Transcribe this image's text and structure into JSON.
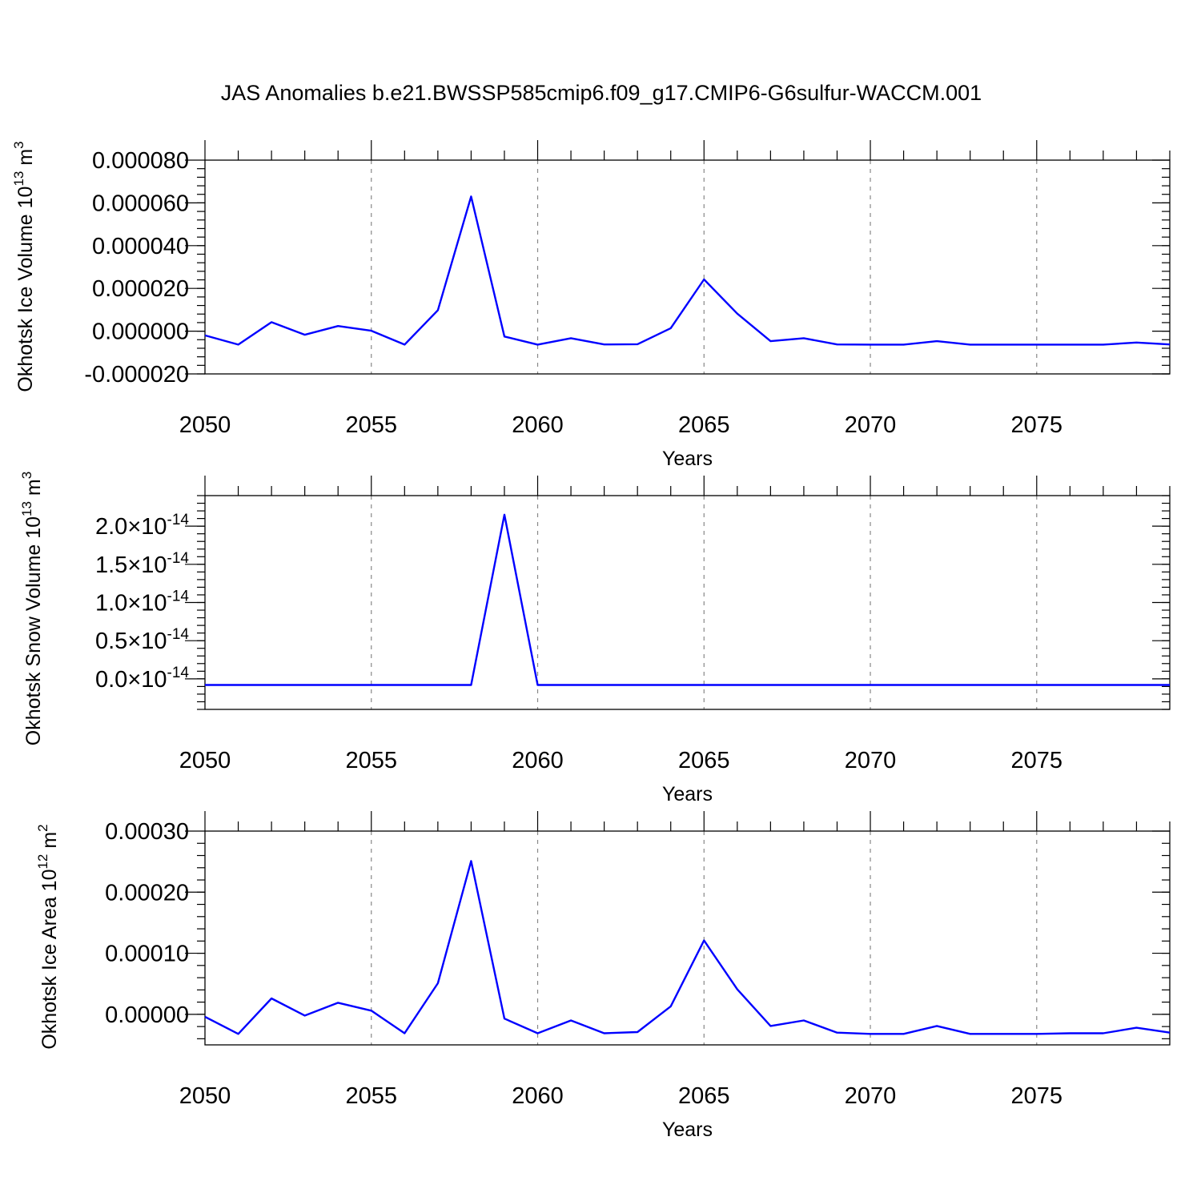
{
  "title": "JAS Anomalies b.e21.BWSSP585cmip6.f09_g17.CMIP6-G6sulfur-WACCM.001",
  "chart_data": [
    {
      "type": "line",
      "ylabel": "Okhotsk Ice Volume 10",
      "ylabel_exp": "13",
      "ylabel_unit": " m",
      "ylabel_unit_exp": "3",
      "xlabel": "Years",
      "xlim": [
        2050,
        2079
      ],
      "ylim": [
        -2e-05,
        8e-05
      ],
      "grid": "vertical dashed at major x ticks",
      "color": "#0000ff",
      "xticks": [
        {
          "value": 2050,
          "label": "2050"
        },
        {
          "value": 2055,
          "label": "2055"
        },
        {
          "value": 2060,
          "label": "2060"
        },
        {
          "value": 2065,
          "label": "2065"
        },
        {
          "value": 2070,
          "label": "2070"
        },
        {
          "value": 2075,
          "label": "2075"
        }
      ],
      "yticks": [
        {
          "value": 8e-05,
          "label": "0.000080"
        },
        {
          "value": 6e-05,
          "label": "0.000060"
        },
        {
          "value": 4e-05,
          "label": "0.000040"
        },
        {
          "value": 2e-05,
          "label": "0.000020"
        },
        {
          "value": 0.0,
          "label": "0.000000"
        },
        {
          "value": -2e-05,
          "label": "-0.000020"
        }
      ],
      "x": [
        2050,
        2051,
        2052,
        2053,
        2054,
        2055,
        2056,
        2057,
        2058,
        2059,
        2060,
        2061,
        2062,
        2063,
        2064,
        2065,
        2066,
        2067,
        2068,
        2069,
        2070,
        2071,
        2072,
        2073,
        2074,
        2075,
        2076,
        2077,
        2078,
        2079
      ],
      "values": [
        -2e-06,
        -6.3e-06,
        4.2e-06,
        -1.7e-06,
        2.4e-06,
        2e-07,
        -6.3e-06,
        9.8e-06,
        6.3e-05,
        -2.5e-06,
        -6.3e-06,
        -3.3e-06,
        -6.2e-06,
        -6.1e-06,
        1.4e-06,
        2.42e-05,
        8.2e-06,
        -4.7e-06,
        -3.3e-06,
        -6.2e-06,
        -6.3e-06,
        -6.3e-06,
        -4.7e-06,
        -6.3e-06,
        -6.3e-06,
        -6.3e-06,
        -6.3e-06,
        -6.3e-06,
        -5.3e-06,
        -6.2e-06
      ]
    },
    {
      "type": "line",
      "ylabel": "Okhotsk Snow Volume 10",
      "ylabel_exp": "13",
      "ylabel_unit": " m",
      "ylabel_unit_exp": "3",
      "xlabel": "Years",
      "xlim": [
        2050,
        2079
      ],
      "ylim": [
        -4e-15,
        2.4e-14
      ],
      "grid": "vertical dashed at major x ticks",
      "color": "#0000ff",
      "xticks": [
        {
          "value": 2050,
          "label": "2050"
        },
        {
          "value": 2055,
          "label": "2055"
        },
        {
          "value": 2060,
          "label": "2060"
        },
        {
          "value": 2065,
          "label": "2065"
        },
        {
          "value": 2070,
          "label": "2070"
        },
        {
          "value": 2075,
          "label": "2075"
        }
      ],
      "yticks": [
        {
          "value": 2e-14,
          "mantissa": "2.0",
          "times": "×10",
          "exp": "-14"
        },
        {
          "value": 1.5e-14,
          "mantissa": "1.5",
          "times": "×10",
          "exp": "-14"
        },
        {
          "value": 1e-14,
          "mantissa": "1.0",
          "times": "×10",
          "exp": "-14"
        },
        {
          "value": 5e-15,
          "mantissa": "0.5",
          "times": "×10",
          "exp": "-14"
        },
        {
          "value": 0.0,
          "mantissa": "0.0",
          "times": "×10",
          "exp": "-14"
        }
      ],
      "x": [
        2050,
        2051,
        2052,
        2053,
        2054,
        2055,
        2056,
        2057,
        2058,
        2059,
        2060,
        2061,
        2062,
        2063,
        2064,
        2065,
        2066,
        2067,
        2068,
        2069,
        2070,
        2071,
        2072,
        2073,
        2074,
        2075,
        2076,
        2077,
        2078,
        2079
      ],
      "values": [
        -8e-16,
        -8e-16,
        -8e-16,
        -8e-16,
        -8e-16,
        -8e-16,
        -8e-16,
        -8e-16,
        -8e-16,
        2.15e-14,
        -8e-16,
        -8e-16,
        -8e-16,
        -8e-16,
        -8e-16,
        -8e-16,
        -8e-16,
        -8e-16,
        -8e-16,
        -8e-16,
        -8e-16,
        -8e-16,
        -8e-16,
        -8e-16,
        -8e-16,
        -8e-16,
        -8e-16,
        -8e-16,
        -8e-16,
        -8e-16
      ]
    },
    {
      "type": "line",
      "ylabel": "Okhotsk Ice Area 10",
      "ylabel_exp": "12",
      "ylabel_unit": " m",
      "ylabel_unit_exp": "2",
      "xlabel": "Years",
      "xlim": [
        2050,
        2079
      ],
      "ylim": [
        -5e-05,
        0.0003
      ],
      "grid": "vertical dashed at major x ticks",
      "color": "#0000ff",
      "xticks": [
        {
          "value": 2050,
          "label": "2050"
        },
        {
          "value": 2055,
          "label": "2055"
        },
        {
          "value": 2060,
          "label": "2060"
        },
        {
          "value": 2065,
          "label": "2065"
        },
        {
          "value": 2070,
          "label": "2070"
        },
        {
          "value": 2075,
          "label": "2075"
        }
      ],
      "yticks": [
        {
          "value": 0.0003,
          "label": "0.00030"
        },
        {
          "value": 0.0002,
          "label": "0.00020"
        },
        {
          "value": 0.0001,
          "label": "0.00010"
        },
        {
          "value": 0.0,
          "label": "0.00000"
        }
      ],
      "x": [
        2050,
        2051,
        2052,
        2053,
        2054,
        2055,
        2056,
        2057,
        2058,
        2059,
        2060,
        2061,
        2062,
        2063,
        2064,
        2065,
        2066,
        2067,
        2068,
        2069,
        2070,
        2071,
        2072,
        2073,
        2074,
        2075,
        2076,
        2077,
        2078,
        2079
      ],
      "values": [
        -4e-06,
        -3.2e-05,
        2.6e-05,
        -2e-06,
        1.9e-05,
        6e-06,
        -3.1e-05,
        5.1e-05,
        0.000251,
        -7e-06,
        -3.1e-05,
        -1e-05,
        -3.1e-05,
        -2.9e-05,
        1.3e-05,
        0.000121,
        4.1e-05,
        -1.9e-05,
        -1e-05,
        -3e-05,
        -3.2e-05,
        -3.2e-05,
        -1.9e-05,
        -3.2e-05,
        -3.2e-05,
        -3.2e-05,
        -3.1e-05,
        -3.1e-05,
        -2.2e-05,
        -3e-05
      ]
    }
  ]
}
